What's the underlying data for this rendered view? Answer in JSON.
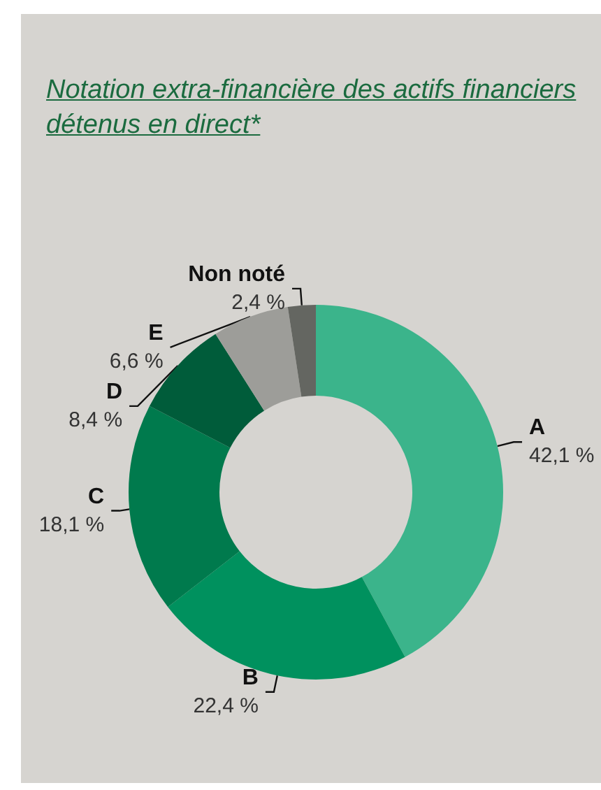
{
  "chart_data": {
    "type": "donut",
    "title": "Notation extra-financière des actifs financiers détenus en direct*",
    "categories": [
      "A",
      "B",
      "C",
      "D",
      "E",
      "Non noté"
    ],
    "values": [
      42.1,
      22.4,
      18.1,
      8.4,
      6.6,
      2.4
    ],
    "value_labels": [
      "42,1 %",
      "22,4 %",
      "18,1 %",
      "8,4 %",
      "6,6 %",
      "2,4 %"
    ],
    "colors": [
      "#3bb48b",
      "#00915e",
      "#007a4d",
      "#005c3a",
      "#9d9d99",
      "#646661"
    ],
    "legend": false
  }
}
